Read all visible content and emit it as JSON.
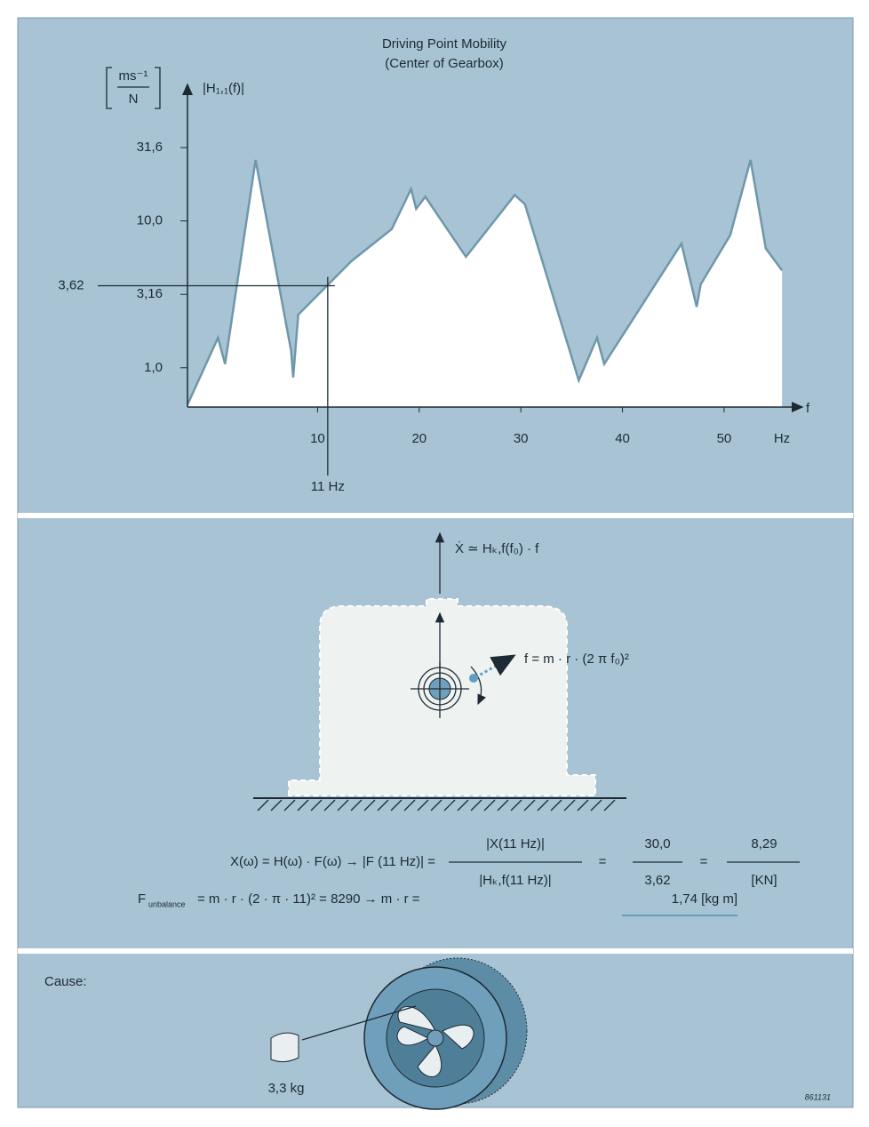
{
  "chart_data": {
    "type": "area",
    "title": "Driving Point Mobility",
    "subtitle": "(Center of Gearbox)",
    "y_label": "|H₁,₁(f)|",
    "y_unit_numerator": "ms⁻¹",
    "y_unit_denominator": "N",
    "x_label": "f",
    "x_unit": "Hz",
    "x": [
      -2.8,
      0.2,
      0.9,
      3.9,
      7.4,
      7.6,
      8.1,
      13.3,
      17.3,
      19.2,
      19.7,
      20.6,
      24.6,
      29.4,
      30.4,
      35.7,
      37.5,
      38.2,
      45.8,
      47.3,
      47.7,
      50.6,
      52.6,
      54.1,
      55.7
    ],
    "values": [
      0.56,
      1.6,
      1.06,
      26,
      1.3,
      0.86,
      2.3,
      5.3,
      8.8,
      16.5,
      12.1,
      14.6,
      5.7,
      15,
      13,
      0.82,
      1.6,
      1.06,
      7,
      2.6,
      3.7,
      8,
      26,
      6.5,
      4.6
    ],
    "color": "#6f97aa",
    "fill": "#ffffff",
    "log_y": true,
    "xlim": [
      -2.8,
      57
    ],
    "ylim": [
      0.54,
      85
    ],
    "xticks": [
      10,
      20,
      30,
      40,
      50
    ],
    "yticks": [
      {
        "value": 1,
        "label": "1,0"
      },
      {
        "value": 3.16,
        "label": "3,16"
      },
      {
        "value": 10,
        "label": "10,0"
      },
      {
        "value": 31.6,
        "label": "31,6"
      }
    ],
    "annotations": [
      {
        "value": 3.62,
        "label": "3,62",
        "axis": "y"
      },
      {
        "value": 11,
        "label": "11 Hz",
        "axis": "x"
      }
    ]
  },
  "diagram": {
    "velocity": "Ẋ ≃ Hₖ,f(f₀) · f",
    "force": "f = m · r · (2 π f₀)²"
  },
  "equation_1": {
    "lhs": "X(ω) = H(ω) · F(ω) → |F (11 Hz)| =",
    "numerator": "|X(11 Hz)|",
    "denominator": "|Hₖ,f(11 Hz)|",
    "eq_a": "=",
    "num_2": "30,0",
    "den_2": "3,62",
    "eq_b": "=",
    "num_3": "8,29",
    "den_3": "[KN]"
  },
  "equation_2": {
    "symbol": "F",
    "subscript": "unbalance",
    "rhs": "= m · r · (2 · π · 11)² = 8290 → m · r =",
    "result": "1,74 [kg m]"
  },
  "cause": {
    "label": "Cause:",
    "mass": "3,3 kg"
  },
  "figure_id": "861131"
}
